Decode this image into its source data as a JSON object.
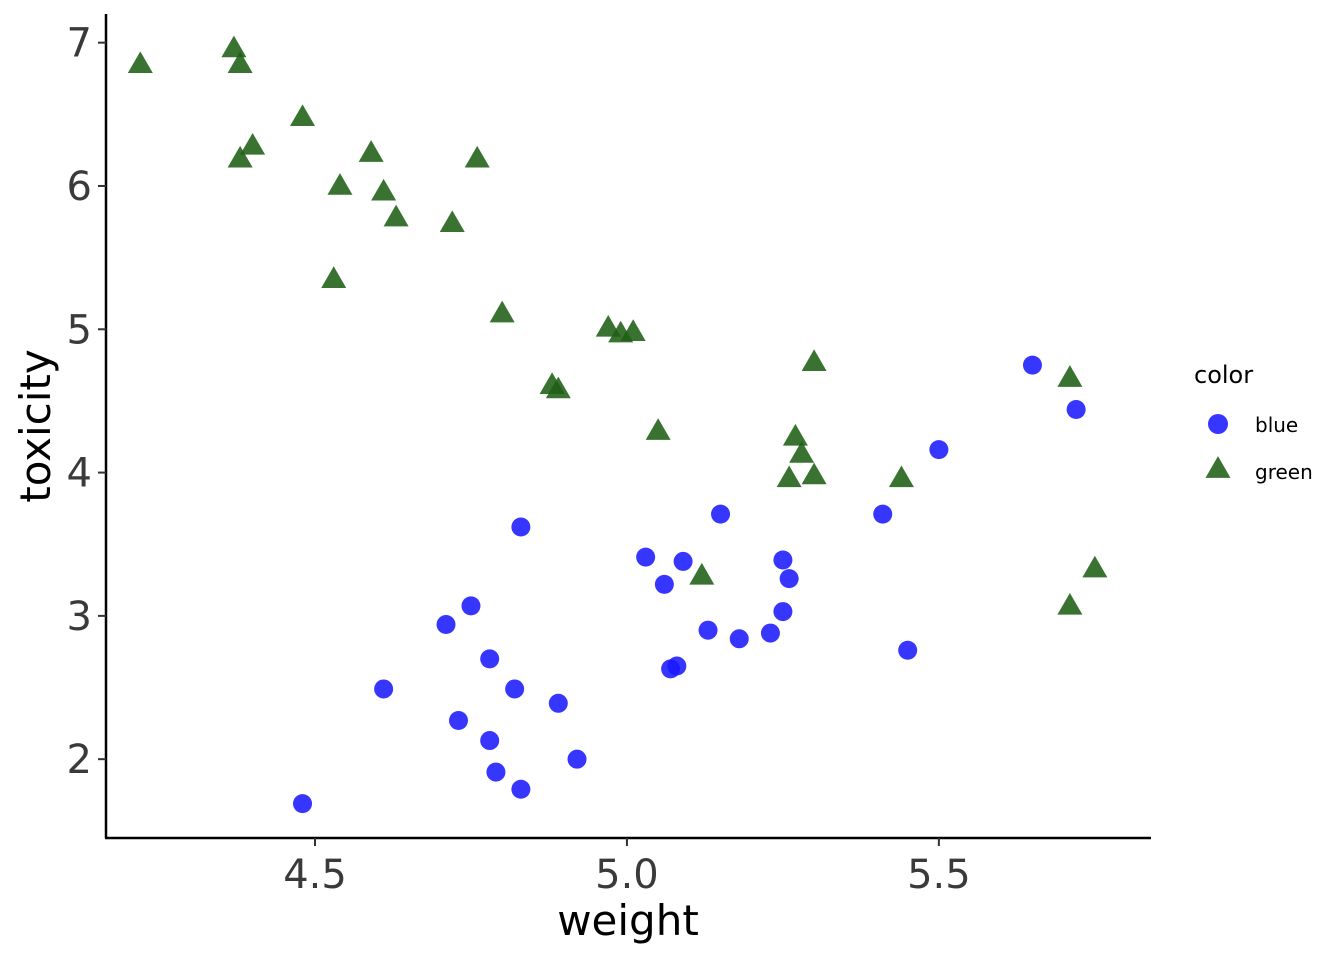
{
  "chart_data": {
    "type": "scatter",
    "title": "",
    "xlabel": "weight",
    "ylabel": "toxicity",
    "xlim": [
      4.165,
      5.84
    ],
    "ylim": [
      1.45,
      7.2
    ],
    "x_ticks": [
      4.5,
      5.0,
      5.5
    ],
    "x_tick_labels": [
      "4.5",
      "5.0",
      "5.5"
    ],
    "y_ticks": [
      2,
      3,
      4,
      5,
      6,
      7
    ],
    "y_tick_labels": [
      "2",
      "3",
      "4",
      "5",
      "6",
      "7"
    ],
    "grid": false,
    "legend": {
      "title": "color",
      "placement": "right"
    },
    "series": [
      {
        "name": "blue",
        "marker": "circle",
        "color": "#1a1aff",
        "points": [
          [
            4.48,
            1.69
          ],
          [
            4.61,
            2.49
          ],
          [
            4.71,
            2.94
          ],
          [
            4.73,
            2.27
          ],
          [
            4.75,
            3.07
          ],
          [
            4.78,
            2.7
          ],
          [
            4.78,
            2.13
          ],
          [
            4.79,
            1.91
          ],
          [
            4.82,
            2.49
          ],
          [
            4.83,
            1.79
          ],
          [
            4.83,
            3.62
          ],
          [
            4.89,
            2.39
          ],
          [
            4.92,
            2.0
          ],
          [
            5.03,
            3.41
          ],
          [
            5.06,
            3.22
          ],
          [
            5.07,
            2.63
          ],
          [
            5.08,
            2.65
          ],
          [
            5.09,
            3.38
          ],
          [
            5.13,
            2.9
          ],
          [
            5.15,
            3.71
          ],
          [
            5.18,
            2.84
          ],
          [
            5.23,
            2.88
          ],
          [
            5.25,
            3.39
          ],
          [
            5.25,
            3.03
          ],
          [
            5.26,
            3.26
          ],
          [
            5.41,
            3.71
          ],
          [
            5.45,
            2.76
          ],
          [
            5.5,
            4.16
          ],
          [
            5.65,
            4.75
          ],
          [
            5.72,
            4.44
          ]
        ]
      },
      {
        "name": "green",
        "marker": "triangle",
        "color": "#1e5e14",
        "points": [
          [
            4.22,
            6.85
          ],
          [
            4.37,
            6.96
          ],
          [
            4.38,
            6.85
          ],
          [
            4.38,
            6.19
          ],
          [
            4.4,
            6.28
          ],
          [
            4.48,
            6.48
          ],
          [
            4.53,
            5.35
          ],
          [
            4.54,
            6.0
          ],
          [
            4.59,
            6.23
          ],
          [
            4.61,
            5.96
          ],
          [
            4.63,
            5.78
          ],
          [
            4.72,
            5.74
          ],
          [
            4.76,
            6.19
          ],
          [
            4.8,
            5.11
          ],
          [
            4.88,
            4.61
          ],
          [
            4.89,
            4.58
          ],
          [
            4.97,
            5.01
          ],
          [
            4.99,
            4.97
          ],
          [
            5.01,
            4.98
          ],
          [
            5.05,
            4.29
          ],
          [
            5.12,
            3.28
          ],
          [
            5.26,
            3.96
          ],
          [
            5.27,
            4.25
          ],
          [
            5.28,
            4.13
          ],
          [
            5.3,
            4.77
          ],
          [
            5.3,
            3.98
          ],
          [
            5.44,
            3.96
          ],
          [
            5.71,
            4.66
          ],
          [
            5.71,
            3.07
          ],
          [
            5.75,
            3.33
          ]
        ]
      }
    ]
  }
}
